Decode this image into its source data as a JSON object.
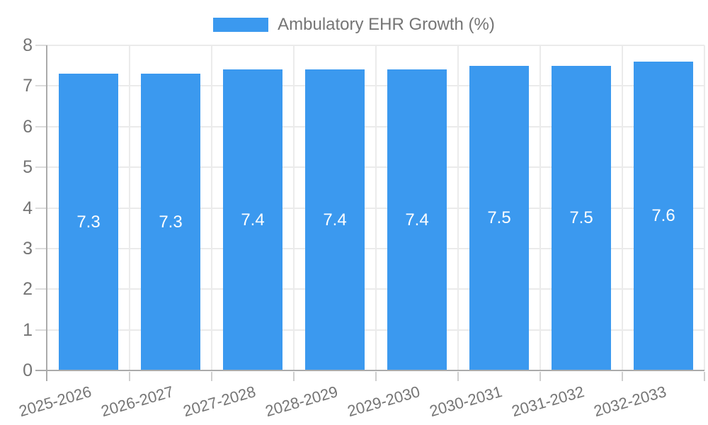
{
  "chart_data": {
    "type": "bar",
    "title": "Ambulatory EHR Growth (%)",
    "categories": [
      "2025-2026",
      "2026-2027",
      "2027-2028",
      "2028-2029",
      "2029-2030",
      "2030-2031",
      "2031-2032",
      "2032-2033"
    ],
    "values": [
      7.3,
      7.3,
      7.4,
      7.4,
      7.4,
      7.5,
      7.5,
      7.6
    ],
    "value_labels": [
      "7.3",
      "7.3",
      "7.4",
      "7.4",
      "7.4",
      "7.5",
      "7.5",
      "7.6"
    ],
    "xlabel": "",
    "ylabel": "",
    "ylim": [
      0,
      8
    ],
    "y_ticks": [
      0,
      1,
      2,
      3,
      4,
      5,
      6,
      7,
      8
    ],
    "grid": true,
    "legend_position": "top-center",
    "legend_entries": [
      "Ambulatory EHR Growth (%)"
    ],
    "bar_color": "#3B99EF",
    "bar_label_color": "#ffffff",
    "axis_text_color": "#757575",
    "axis_line_color": "#ababab",
    "gridline_color": "#ebebeb"
  }
}
